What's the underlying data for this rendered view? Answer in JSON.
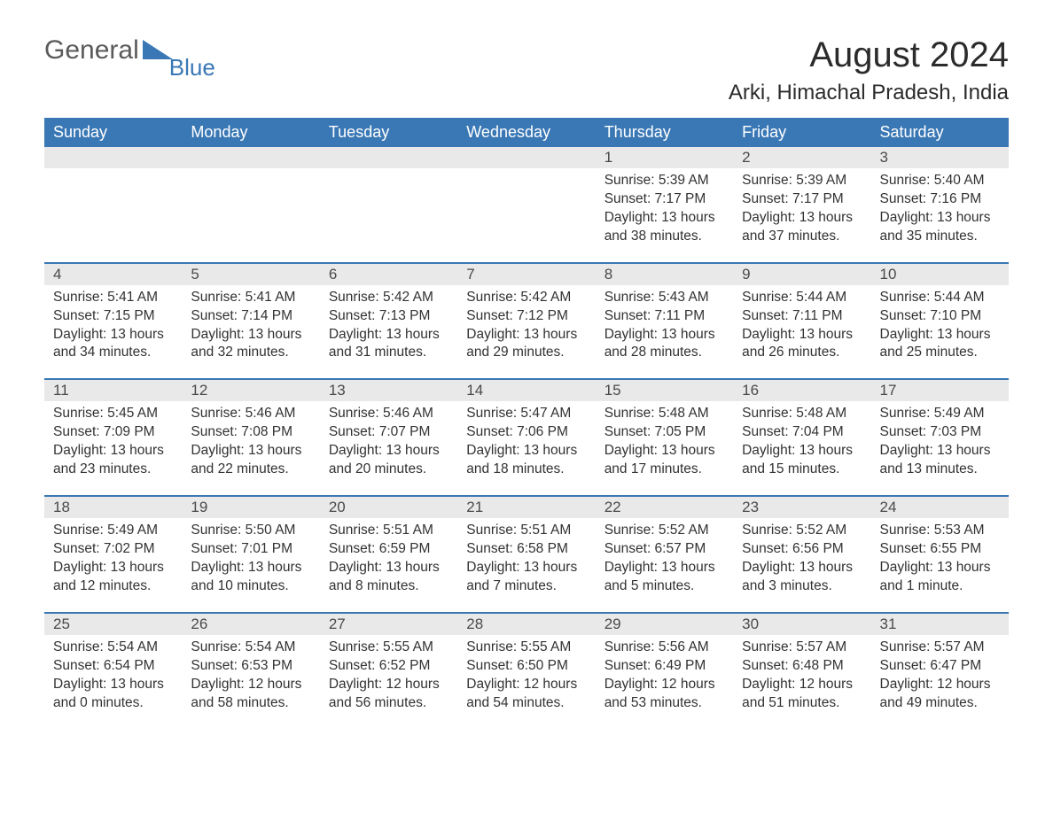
{
  "brand": {
    "part1": "General",
    "part2": "Blue",
    "flag_color": "#3a78b5"
  },
  "title": "August 2024",
  "location": "Arki, Himachal Pradesh, India",
  "colors": {
    "header_bg": "#3a78b5",
    "header_text": "#ffffff",
    "daynum_bg": "#e9e9e9",
    "row_border": "#3a78b5",
    "body_text": "#323232"
  },
  "weekdays": [
    "Sunday",
    "Monday",
    "Tuesday",
    "Wednesday",
    "Thursday",
    "Friday",
    "Saturday"
  ],
  "weeks": [
    [
      null,
      null,
      null,
      null,
      {
        "n": "1",
        "sunrise": "5:39 AM",
        "sunset": "7:17 PM",
        "daylight": "13 hours and 38 minutes."
      },
      {
        "n": "2",
        "sunrise": "5:39 AM",
        "sunset": "7:17 PM",
        "daylight": "13 hours and 37 minutes."
      },
      {
        "n": "3",
        "sunrise": "5:40 AM",
        "sunset": "7:16 PM",
        "daylight": "13 hours and 35 minutes."
      }
    ],
    [
      {
        "n": "4",
        "sunrise": "5:41 AM",
        "sunset": "7:15 PM",
        "daylight": "13 hours and 34 minutes."
      },
      {
        "n": "5",
        "sunrise": "5:41 AM",
        "sunset": "7:14 PM",
        "daylight": "13 hours and 32 minutes."
      },
      {
        "n": "6",
        "sunrise": "5:42 AM",
        "sunset": "7:13 PM",
        "daylight": "13 hours and 31 minutes."
      },
      {
        "n": "7",
        "sunrise": "5:42 AM",
        "sunset": "7:12 PM",
        "daylight": "13 hours and 29 minutes."
      },
      {
        "n": "8",
        "sunrise": "5:43 AM",
        "sunset": "7:11 PM",
        "daylight": "13 hours and 28 minutes."
      },
      {
        "n": "9",
        "sunrise": "5:44 AM",
        "sunset": "7:11 PM",
        "daylight": "13 hours and 26 minutes."
      },
      {
        "n": "10",
        "sunrise": "5:44 AM",
        "sunset": "7:10 PM",
        "daylight": "13 hours and 25 minutes."
      }
    ],
    [
      {
        "n": "11",
        "sunrise": "5:45 AM",
        "sunset": "7:09 PM",
        "daylight": "13 hours and 23 minutes."
      },
      {
        "n": "12",
        "sunrise": "5:46 AM",
        "sunset": "7:08 PM",
        "daylight": "13 hours and 22 minutes."
      },
      {
        "n": "13",
        "sunrise": "5:46 AM",
        "sunset": "7:07 PM",
        "daylight": "13 hours and 20 minutes."
      },
      {
        "n": "14",
        "sunrise": "5:47 AM",
        "sunset": "7:06 PM",
        "daylight": "13 hours and 18 minutes."
      },
      {
        "n": "15",
        "sunrise": "5:48 AM",
        "sunset": "7:05 PM",
        "daylight": "13 hours and 17 minutes."
      },
      {
        "n": "16",
        "sunrise": "5:48 AM",
        "sunset": "7:04 PM",
        "daylight": "13 hours and 15 minutes."
      },
      {
        "n": "17",
        "sunrise": "5:49 AM",
        "sunset": "7:03 PM",
        "daylight": "13 hours and 13 minutes."
      }
    ],
    [
      {
        "n": "18",
        "sunrise": "5:49 AM",
        "sunset": "7:02 PM",
        "daylight": "13 hours and 12 minutes."
      },
      {
        "n": "19",
        "sunrise": "5:50 AM",
        "sunset": "7:01 PM",
        "daylight": "13 hours and 10 minutes."
      },
      {
        "n": "20",
        "sunrise": "5:51 AM",
        "sunset": "6:59 PM",
        "daylight": "13 hours and 8 minutes."
      },
      {
        "n": "21",
        "sunrise": "5:51 AM",
        "sunset": "6:58 PM",
        "daylight": "13 hours and 7 minutes."
      },
      {
        "n": "22",
        "sunrise": "5:52 AM",
        "sunset": "6:57 PM",
        "daylight": "13 hours and 5 minutes."
      },
      {
        "n": "23",
        "sunrise": "5:52 AM",
        "sunset": "6:56 PM",
        "daylight": "13 hours and 3 minutes."
      },
      {
        "n": "24",
        "sunrise": "5:53 AM",
        "sunset": "6:55 PM",
        "daylight": "13 hours and 1 minute."
      }
    ],
    [
      {
        "n": "25",
        "sunrise": "5:54 AM",
        "sunset": "6:54 PM",
        "daylight": "13 hours and 0 minutes."
      },
      {
        "n": "26",
        "sunrise": "5:54 AM",
        "sunset": "6:53 PM",
        "daylight": "12 hours and 58 minutes."
      },
      {
        "n": "27",
        "sunrise": "5:55 AM",
        "sunset": "6:52 PM",
        "daylight": "12 hours and 56 minutes."
      },
      {
        "n": "28",
        "sunrise": "5:55 AM",
        "sunset": "6:50 PM",
        "daylight": "12 hours and 54 minutes."
      },
      {
        "n": "29",
        "sunrise": "5:56 AM",
        "sunset": "6:49 PM",
        "daylight": "12 hours and 53 minutes."
      },
      {
        "n": "30",
        "sunrise": "5:57 AM",
        "sunset": "6:48 PM",
        "daylight": "12 hours and 51 minutes."
      },
      {
        "n": "31",
        "sunrise": "5:57 AM",
        "sunset": "6:47 PM",
        "daylight": "12 hours and 49 minutes."
      }
    ]
  ],
  "labels": {
    "sunrise": "Sunrise: ",
    "sunset": "Sunset: ",
    "daylight": "Daylight: "
  }
}
